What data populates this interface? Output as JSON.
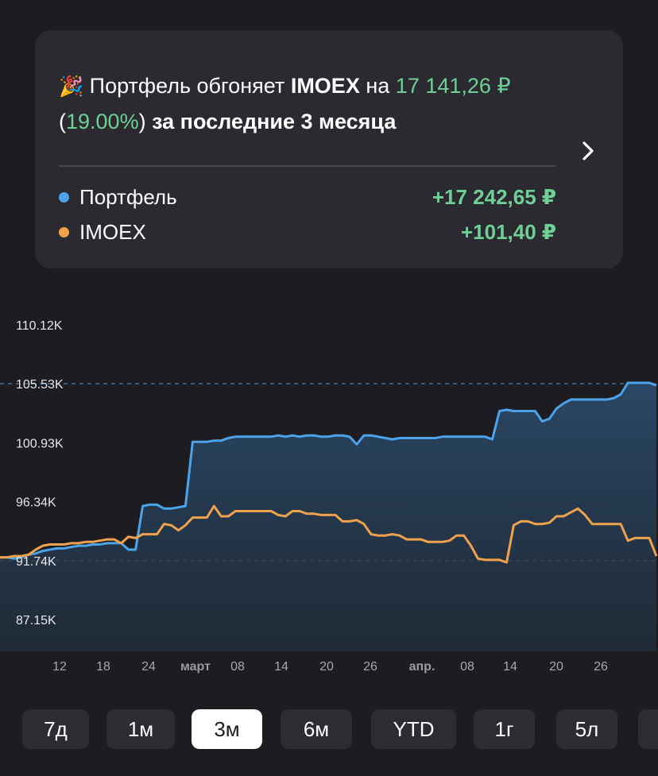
{
  "summary": {
    "emoji": "🎉",
    "lead": "Портфель обгоняет",
    "index": "IMOEX",
    "word_on": "на",
    "amount": "17 141,26 ₽",
    "open_paren": "(",
    "percent": "19.00%",
    "close_paren": ")",
    "period_text": "за последние 3 месяца"
  },
  "legend": [
    {
      "name": "Портфель",
      "value": "+17 242,65 ₽",
      "color": "#4ca3ea"
    },
    {
      "name": "IMOEX",
      "value": "+101,40 ₽",
      "color": "#efa24e"
    }
  ],
  "colors": {
    "portfolio": "#4ca3ea",
    "imoex": "#efa24e",
    "gain": "#6fcf97",
    "background": "#1c1c21",
    "card": "#2a2a30"
  },
  "chart_data": {
    "type": "line",
    "y_ticks": [
      "110.12K",
      "105.53K",
      "100.93K",
      "96.34K",
      "91.74K",
      "87.15K"
    ],
    "ylim": [
      87.15,
      110.12
    ],
    "x_ticks": [
      "12",
      "18",
      "24",
      "март",
      "08",
      "14",
      "20",
      "26",
      "апр.",
      "08",
      "14",
      "20",
      "26"
    ],
    "x_month_ticks": [
      "март",
      "апр."
    ],
    "reference_lines": [
      105.53,
      91.74
    ],
    "series": [
      {
        "name": "Портфель",
        "color": "#4ca3ea",
        "area_fill": true,
        "values": [
          92.0,
          92.0,
          91.9,
          92.0,
          92.2,
          92.3,
          92.5,
          92.6,
          92.7,
          92.7,
          92.8,
          92.9,
          92.9,
          93.0,
          93.0,
          93.1,
          93.1,
          93.1,
          92.6,
          92.6,
          96.0,
          96.1,
          96.1,
          95.8,
          95.8,
          95.9,
          96.0,
          101.0,
          101.0,
          101.0,
          101.1,
          101.1,
          101.3,
          101.4,
          101.4,
          101.4,
          101.4,
          101.4,
          101.4,
          101.5,
          101.4,
          101.5,
          101.4,
          101.5,
          101.5,
          101.4,
          101.4,
          101.5,
          101.5,
          101.4,
          100.8,
          101.5,
          101.5,
          101.4,
          101.3,
          101.2,
          101.3,
          101.3,
          101.3,
          101.3,
          101.3,
          101.3,
          101.4,
          101.4,
          101.4,
          101.4,
          101.4,
          101.4,
          101.4,
          101.2,
          103.4,
          103.5,
          103.4,
          103.4,
          103.4,
          103.4,
          102.6,
          102.8,
          103.6,
          104.0,
          104.3,
          104.3,
          104.3,
          104.3,
          104.3,
          104.3,
          104.4,
          104.7,
          105.6,
          105.6,
          105.6,
          105.6,
          105.4
        ]
      },
      {
        "name": "IMOEX",
        "color": "#efa24e",
        "area_fill": false,
        "values": [
          92.0,
          92.0,
          92.1,
          92.1,
          92.2,
          92.6,
          92.9,
          93.0,
          93.0,
          93.0,
          93.1,
          93.1,
          93.2,
          93.2,
          93.3,
          93.4,
          93.4,
          93.1,
          93.6,
          93.5,
          93.8,
          93.8,
          93.8,
          94.6,
          94.5,
          94.1,
          94.5,
          95.1,
          95.1,
          95.1,
          96.0,
          95.2,
          95.2,
          95.6,
          95.6,
          95.6,
          95.6,
          95.6,
          95.6,
          95.3,
          95.2,
          95.6,
          95.6,
          95.4,
          95.4,
          95.3,
          95.3,
          95.3,
          94.8,
          94.8,
          94.9,
          94.6,
          93.8,
          93.7,
          93.7,
          93.8,
          93.7,
          93.4,
          93.4,
          93.4,
          93.2,
          93.2,
          93.2,
          93.3,
          93.7,
          93.7,
          92.9,
          91.9,
          91.8,
          91.8,
          91.8,
          91.6,
          94.5,
          94.8,
          94.8,
          94.6,
          94.6,
          94.7,
          95.2,
          95.2,
          95.5,
          95.8,
          95.3,
          94.6,
          94.6,
          94.6,
          94.6,
          94.6,
          93.3,
          93.5,
          93.5,
          93.5,
          92.1
        ]
      }
    ]
  },
  "periods": [
    {
      "label": "7д",
      "active": false
    },
    {
      "label": "1м",
      "active": false
    },
    {
      "label": "3м",
      "active": true
    },
    {
      "label": "6м",
      "active": false
    },
    {
      "label": "YTD",
      "active": false
    },
    {
      "label": "1г",
      "active": false
    },
    {
      "label": "5л",
      "active": false
    },
    {
      "label": "",
      "active": false
    }
  ]
}
